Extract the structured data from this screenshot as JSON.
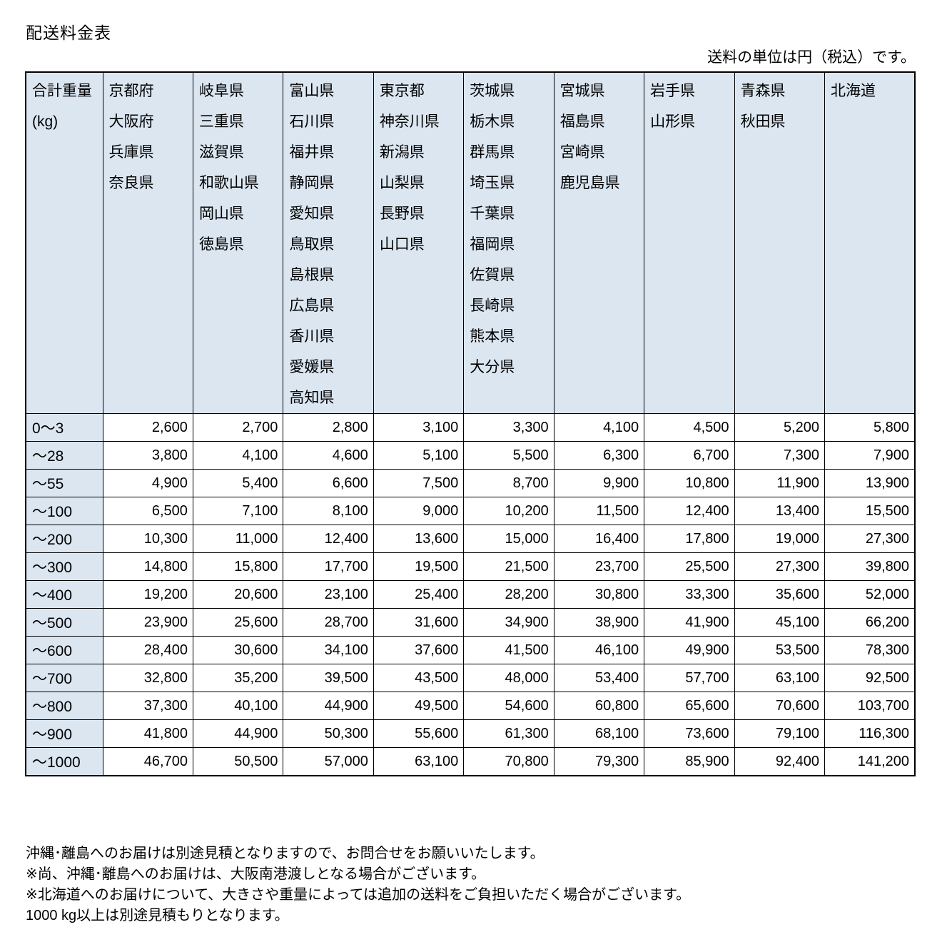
{
  "page": {
    "title": "配送料金表",
    "unit_note": "送料の単位は円（税込）です。"
  },
  "colors": {
    "header_fill": "#dbe6f1",
    "border": "#000000",
    "text": "#000000",
    "background": "#ffffff"
  },
  "table": {
    "weight_header_lines": [
      "合計重量",
      "(kg)"
    ],
    "region_columns": [
      [
        "京都府",
        "大阪府",
        "兵庫県",
        "奈良県"
      ],
      [
        "岐阜県",
        "三重県",
        "滋賀県",
        "和歌山県",
        "岡山県",
        "徳島県"
      ],
      [
        "富山県",
        "石川県",
        "福井県",
        "静岡県",
        "愛知県",
        "鳥取県",
        "島根県",
        "広島県",
        "香川県",
        "愛媛県",
        "高知県"
      ],
      [
        "東京都",
        "神奈川県",
        "新潟県",
        "山梨県",
        "長野県",
        "山口県"
      ],
      [
        "茨城県",
        "栃木県",
        "群馬県",
        "埼玉県",
        "千葉県",
        "福岡県",
        "佐賀県",
        "長崎県",
        "熊本県",
        "大分県"
      ],
      [
        "宮城県",
        "福島県",
        "宮崎県",
        "鹿児島県"
      ],
      [
        "岩手県",
        "山形県"
      ],
      [
        "青森県",
        "秋田県"
      ],
      [
        "北海道"
      ]
    ],
    "rows": [
      {
        "weight": "0～3",
        "fees": [
          "2,600",
          "2,700",
          "2,800",
          "3,100",
          "3,300",
          "4,100",
          "4,500",
          "5,200",
          "5,800"
        ]
      },
      {
        "weight": "～28",
        "fees": [
          "3,800",
          "4,100",
          "4,600",
          "5,100",
          "5,500",
          "6,300",
          "6,700",
          "7,300",
          "7,900"
        ]
      },
      {
        "weight": "～55",
        "fees": [
          "4,900",
          "5,400",
          "6,600",
          "7,500",
          "8,700",
          "9,900",
          "10,800",
          "11,900",
          "13,900"
        ]
      },
      {
        "weight": "～100",
        "fees": [
          "6,500",
          "7,100",
          "8,100",
          "9,000",
          "10,200",
          "11,500",
          "12,400",
          "13,400",
          "15,500"
        ]
      },
      {
        "weight": "～200",
        "fees": [
          "10,300",
          "11,000",
          "12,400",
          "13,600",
          "15,000",
          "16,400",
          "17,800",
          "19,000",
          "27,300"
        ]
      },
      {
        "weight": "～300",
        "fees": [
          "14,800",
          "15,800",
          "17,700",
          "19,500",
          "21,500",
          "23,700",
          "25,500",
          "27,300",
          "39,800"
        ]
      },
      {
        "weight": "～400",
        "fees": [
          "19,200",
          "20,600",
          "23,100",
          "25,400",
          "28,200",
          "30,800",
          "33,300",
          "35,600",
          "52,000"
        ]
      },
      {
        "weight": "～500",
        "fees": [
          "23,900",
          "25,600",
          "28,700",
          "31,600",
          "34,900",
          "38,900",
          "41,900",
          "45,100",
          "66,200"
        ]
      },
      {
        "weight": "～600",
        "fees": [
          "28,400",
          "30,600",
          "34,100",
          "37,600",
          "41,500",
          "46,100",
          "49,900",
          "53,500",
          "78,300"
        ]
      },
      {
        "weight": "～700",
        "fees": [
          "32,800",
          "35,200",
          "39,500",
          "43,500",
          "48,000",
          "53,400",
          "57,700",
          "63,100",
          "92,500"
        ]
      },
      {
        "weight": "～800",
        "fees": [
          "37,300",
          "40,100",
          "44,900",
          "49,500",
          "54,600",
          "60,800",
          "65,600",
          "70,600",
          "103,700"
        ]
      },
      {
        "weight": "～900",
        "fees": [
          "41,800",
          "44,900",
          "50,300",
          "55,600",
          "61,300",
          "68,100",
          "73,600",
          "79,100",
          "116,300"
        ]
      },
      {
        "weight": "～1000",
        "fees": [
          "46,700",
          "50,500",
          "57,000",
          "63,100",
          "70,800",
          "79,300",
          "85,900",
          "92,400",
          "141,200"
        ]
      }
    ]
  },
  "notes": [
    "沖縄･離島へのお届けは別途見積となりますので、お問合せをお願いいたします。",
    "※尚、沖縄･離島へのお届けは、大阪南港渡しとなる場合がございます。",
    "※北海道へのお届けについて、大きさや重量によっては追加の送料をご負担いただく場合がございます。",
    "1000 kg以上は別途見積もりとなります。"
  ]
}
